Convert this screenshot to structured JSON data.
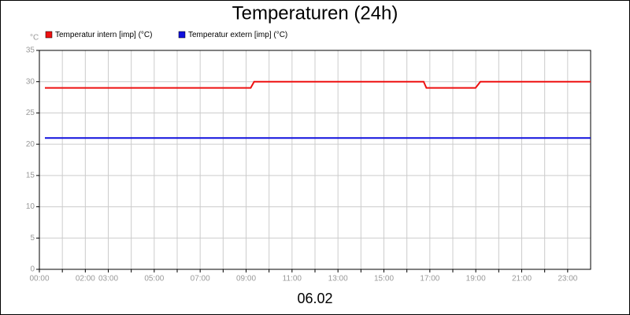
{
  "chart_data": {
    "type": "line",
    "title": "Temperaturen (24h)",
    "y_label": "°C",
    "x_label": "06.02",
    "xlim": [
      0,
      24
    ],
    "xticks": [
      {
        "value": 0,
        "label": "00:00"
      },
      {
        "value": 1,
        "label": null
      },
      {
        "value": 2,
        "label": "02:00"
      },
      {
        "value": 3,
        "label": "03:00"
      },
      {
        "value": 4,
        "label": null
      },
      {
        "value": 5,
        "label": "05:00"
      },
      {
        "value": 6,
        "label": null
      },
      {
        "value": 7,
        "label": "07:00"
      },
      {
        "value": 8,
        "label": null
      },
      {
        "value": 9,
        "label": "09:00"
      },
      {
        "value": 10,
        "label": null
      },
      {
        "value": 11,
        "label": "11:00"
      },
      {
        "value": 12,
        "label": null
      },
      {
        "value": 13,
        "label": "13:00"
      },
      {
        "value": 14,
        "label": null
      },
      {
        "value": 15,
        "label": "15:00"
      },
      {
        "value": 16,
        "label": null
      },
      {
        "value": 17,
        "label": "17:00"
      },
      {
        "value": 18,
        "label": null
      },
      {
        "value": 19,
        "label": "19:00"
      },
      {
        "value": 20,
        "label": null
      },
      {
        "value": 21,
        "label": "21:00"
      },
      {
        "value": 22,
        "label": null
      },
      {
        "value": 23,
        "label": "23:00"
      }
    ],
    "ylim": [
      0,
      35
    ],
    "yticks": [
      0,
      5,
      10,
      15,
      20,
      25,
      30,
      35
    ],
    "grid": true,
    "series": [
      {
        "name": "Temperatur intern [imp] (°C)",
        "color": "#ee1111",
        "x": [
          0.24,
          9.2,
          9.35,
          16.73,
          16.85,
          18.99,
          19.2,
          24
        ],
        "values": [
          29,
          29,
          30,
          30,
          29,
          29,
          30,
          30
        ]
      },
      {
        "name": "Temperatur extern [imp] (°C)",
        "color": "#1111dd",
        "x": [
          0.24,
          24
        ],
        "values": [
          21,
          21
        ]
      }
    ]
  }
}
